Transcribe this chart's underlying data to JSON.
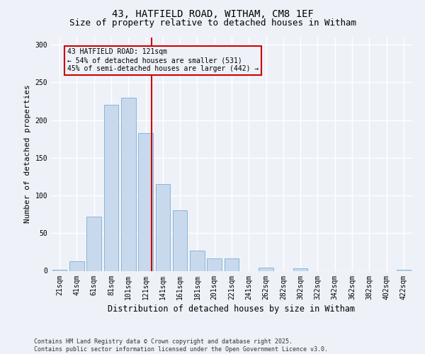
{
  "title1": "43, HATFIELD ROAD, WITHAM, CM8 1EF",
  "title2": "Size of property relative to detached houses in Witham",
  "xlabel": "Distribution of detached houses by size in Witham",
  "ylabel": "Number of detached properties",
  "categories": [
    "21sqm",
    "41sqm",
    "61sqm",
    "81sqm",
    "101sqm",
    "121sqm",
    "141sqm",
    "161sqm",
    "181sqm",
    "201sqm",
    "221sqm",
    "241sqm",
    "262sqm",
    "282sqm",
    "302sqm",
    "322sqm",
    "342sqm",
    "362sqm",
    "382sqm",
    "402sqm",
    "422sqm"
  ],
  "values": [
    1,
    13,
    72,
    220,
    230,
    183,
    115,
    80,
    27,
    16,
    16,
    0,
    4,
    0,
    3,
    0,
    0,
    0,
    0,
    0,
    1
  ],
  "bar_color": "#c9d9ed",
  "bar_edge_color": "#7aadd4",
  "property_line_index": 5,
  "property_line_color": "#cc0000",
  "annotation_text": "43 HATFIELD ROAD: 121sqm\n← 54% of detached houses are smaller (531)\n45% of semi-detached houses are larger (442) →",
  "annotation_box_edge_color": "#cc0000",
  "ylim": [
    0,
    310
  ],
  "yticks": [
    0,
    50,
    100,
    150,
    200,
    250,
    300
  ],
  "background_color": "#eef2f8",
  "grid_color": "#ffffff",
  "footer": "Contains HM Land Registry data © Crown copyright and database right 2025.\nContains public sector information licensed under the Open Government Licence v3.0.",
  "title_fontsize": 10,
  "subtitle_fontsize": 9,
  "tick_fontsize": 7,
  "ylabel_fontsize": 8,
  "xlabel_fontsize": 8.5,
  "footer_fontsize": 6
}
